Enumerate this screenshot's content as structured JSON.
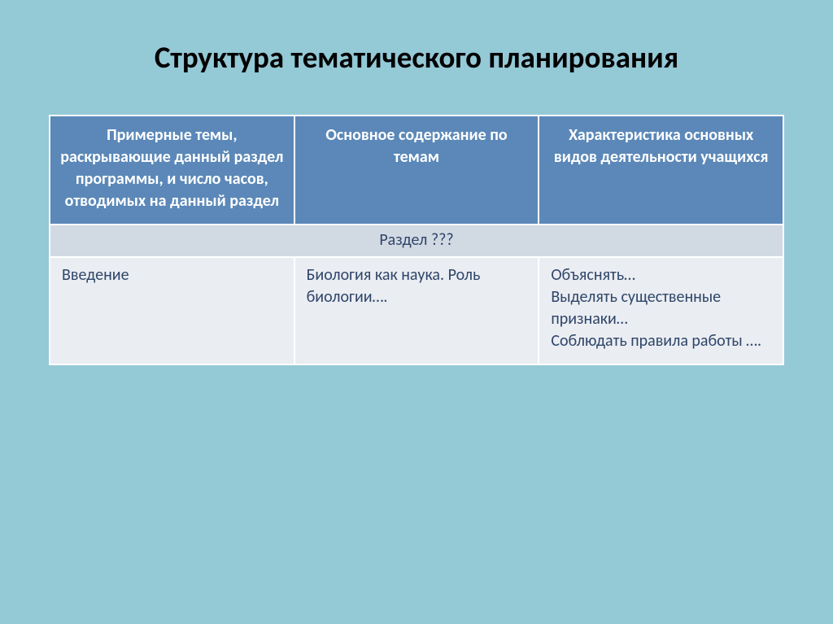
{
  "slide": {
    "background_color": "#94c9d6",
    "title": "Структура тематического планирования",
    "title_fontsize": 37
  },
  "table": {
    "header_bg": "#5b88b8",
    "header_text_color": "#ffffff",
    "header_fontsize": 20,
    "section_bg": "#d1d9e3",
    "section_text_color": "#30466a",
    "section_fontsize": 20,
    "data_bg": "#eaedf2",
    "data_text_color": "#30466a",
    "data_fontsize": 20,
    "border_color": "#ffffff",
    "columns": [
      {
        "header": "Примерные темы, раскрывающие данный раздел программы, и число часов, отводимых на данный раздел"
      },
      {
        "header": "Основное содержание по темам"
      },
      {
        "header": "Характеристика основных видов деятельности учащихся"
      }
    ],
    "section_label": "Раздел ???",
    "rows": [
      {
        "c0": "Введение",
        "c1": "Биология как наука. Роль биологии….",
        "c2": "Объяснять…\nВыделять существенные признаки…\nСоблюдать правила работы …."
      }
    ]
  }
}
